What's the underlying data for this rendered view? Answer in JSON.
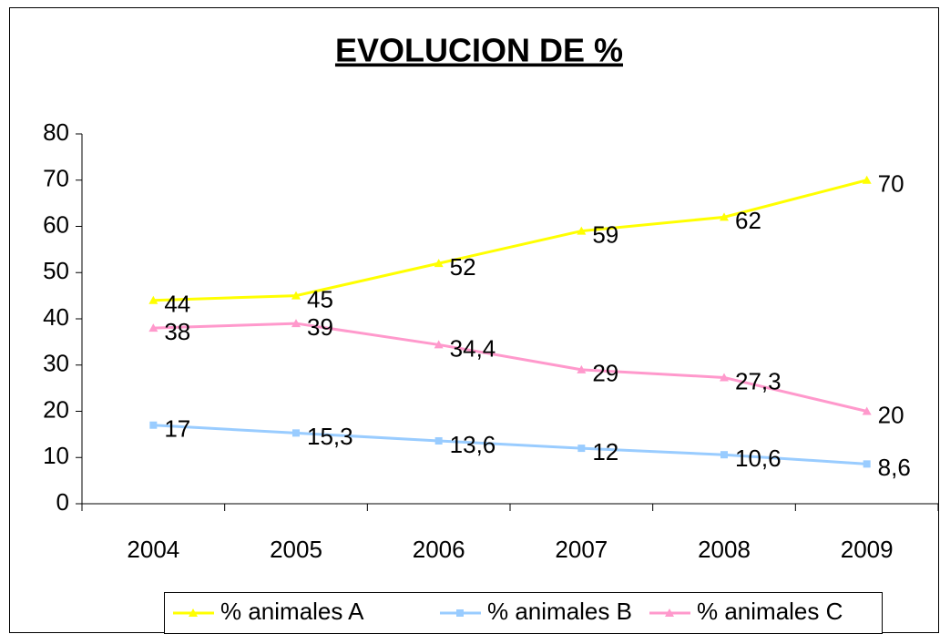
{
  "chart_data": {
    "type": "line",
    "title": "EVOLUCION DE %",
    "categories": [
      "2004",
      "2005",
      "2006",
      "2007",
      "2008",
      "2009"
    ],
    "series": [
      {
        "name": "% animales A",
        "color": "#ffff00",
        "marker": "triangle",
        "values": [
          44,
          45,
          52,
          59,
          62,
          70
        ],
        "value_labels": [
          "44",
          "45",
          "52",
          "59",
          "62",
          "70"
        ]
      },
      {
        "name": "% animales B",
        "color": "#99ccff",
        "marker": "square",
        "values": [
          17,
          15.3,
          13.6,
          12,
          10.6,
          8.6
        ],
        "value_labels": [
          "17",
          "15,3",
          "13,6",
          "12",
          "10,6",
          "8,6"
        ]
      },
      {
        "name": "% animales C",
        "color": "#ff99cc",
        "marker": "triangle",
        "values": [
          38,
          39,
          34.4,
          29,
          27.3,
          20
        ],
        "value_labels": [
          "38",
          "39",
          "34,4",
          "29",
          "27,3",
          "20"
        ]
      }
    ],
    "ylim": [
      0,
      80
    ],
    "yticks": [
      0,
      10,
      20,
      30,
      40,
      50,
      60,
      70,
      80
    ],
    "grid": false,
    "legend": "bottom"
  }
}
